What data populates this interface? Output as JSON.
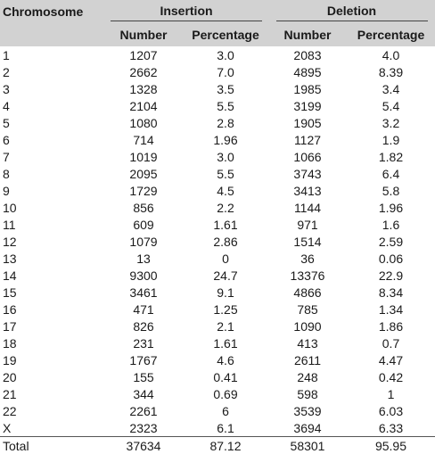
{
  "table": {
    "header": {
      "chromosome": "Chromosome",
      "insertion": "Insertion",
      "deletion": "Deletion",
      "number": "Number",
      "percentage": "Percentage"
    },
    "rows": [
      {
        "chromosome": "1",
        "ins_number": "1207",
        "ins_percentage": "3.0",
        "del_number": "2083",
        "del_percentage": "4.0"
      },
      {
        "chromosome": "2",
        "ins_number": "2662",
        "ins_percentage": "7.0",
        "del_number": "4895",
        "del_percentage": "8.39"
      },
      {
        "chromosome": "3",
        "ins_number": "1328",
        "ins_percentage": "3.5",
        "del_number": "1985",
        "del_percentage": "3.4"
      },
      {
        "chromosome": "4",
        "ins_number": "2104",
        "ins_percentage": "5.5",
        "del_number": "3199",
        "del_percentage": "5.4"
      },
      {
        "chromosome": "5",
        "ins_number": "1080",
        "ins_percentage": "2.8",
        "del_number": "1905",
        "del_percentage": "3.2"
      },
      {
        "chromosome": "6",
        "ins_number": "714",
        "ins_percentage": "1.96",
        "del_number": "1127",
        "del_percentage": "1.9"
      },
      {
        "chromosome": "7",
        "ins_number": "1019",
        "ins_percentage": "3.0",
        "del_number": "1066",
        "del_percentage": "1.82"
      },
      {
        "chromosome": "8",
        "ins_number": "2095",
        "ins_percentage": "5.5",
        "del_number": "3743",
        "del_percentage": "6.4"
      },
      {
        "chromosome": "9",
        "ins_number": "1729",
        "ins_percentage": "4.5",
        "del_number": "3413",
        "del_percentage": "5.8"
      },
      {
        "chromosome": "10",
        "ins_number": "856",
        "ins_percentage": "2.2",
        "del_number": "1144",
        "del_percentage": "1.96"
      },
      {
        "chromosome": "11",
        "ins_number": "609",
        "ins_percentage": "1.61",
        "del_number": "971",
        "del_percentage": "1.6"
      },
      {
        "chromosome": "12",
        "ins_number": "1079",
        "ins_percentage": "2.86",
        "del_number": "1514",
        "del_percentage": "2.59"
      },
      {
        "chromosome": "13",
        "ins_number": "13",
        "ins_percentage": "0",
        "del_number": "36",
        "del_percentage": "0.06"
      },
      {
        "chromosome": "14",
        "ins_number": "9300",
        "ins_percentage": "24.7",
        "del_number": "13376",
        "del_percentage": "22.9"
      },
      {
        "chromosome": "15",
        "ins_number": "3461",
        "ins_percentage": "9.1",
        "del_number": "4866",
        "del_percentage": "8.34"
      },
      {
        "chromosome": "16",
        "ins_number": "471",
        "ins_percentage": "1.25",
        "del_number": "785",
        "del_percentage": "1.34"
      },
      {
        "chromosome": "17",
        "ins_number": "826",
        "ins_percentage": "2.1",
        "del_number": "1090",
        "del_percentage": "1.86"
      },
      {
        "chromosome": "18",
        "ins_number": "231",
        "ins_percentage": "1.61",
        "del_number": "413",
        "del_percentage": "0.7"
      },
      {
        "chromosome": "19",
        "ins_number": "1767",
        "ins_percentage": "4.6",
        "del_number": "2611",
        "del_percentage": "4.47"
      },
      {
        "chromosome": "20",
        "ins_number": "155",
        "ins_percentage": "0.41",
        "del_number": "248",
        "del_percentage": "0.42"
      },
      {
        "chromosome": "21",
        "ins_number": "344",
        "ins_percentage": "0.69",
        "del_number": "598",
        "del_percentage": "1"
      },
      {
        "chromosome": "22",
        "ins_number": "2261",
        "ins_percentage": "6",
        "del_number": "3539",
        "del_percentage": "6.03"
      },
      {
        "chromosome": "X",
        "ins_number": "2323",
        "ins_percentage": "6.1",
        "del_number": "3694",
        "del_percentage": "6.33"
      }
    ],
    "total": {
      "chromosome": "Total",
      "ins_number": "37634",
      "ins_percentage": "87.12",
      "del_number": "58301",
      "del_percentage": "95.95"
    }
  },
  "colors": {
    "header_background": "#d2d2d2",
    "text": "#1a1a1a",
    "rule": "#555555"
  }
}
